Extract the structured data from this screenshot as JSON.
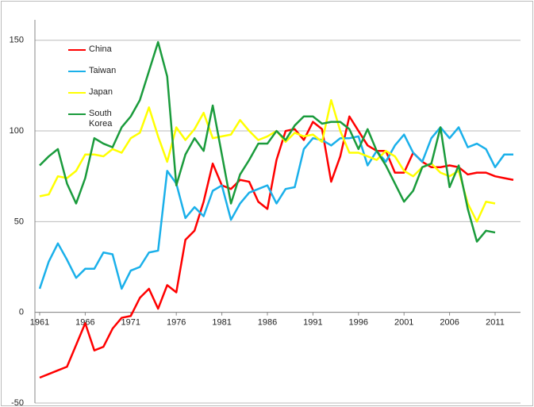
{
  "chart_data": {
    "type": "line",
    "x": [
      1961,
      1962,
      1963,
      1964,
      1965,
      1966,
      1967,
      1968,
      1969,
      1970,
      1971,
      1972,
      1973,
      1974,
      1975,
      1976,
      1977,
      1978,
      1979,
      1980,
      1981,
      1982,
      1983,
      1984,
      1985,
      1986,
      1987,
      1988,
      1989,
      1990,
      1991,
      1992,
      1993,
      1994,
      1995,
      1996,
      1997,
      1998,
      1999,
      2000,
      2001,
      2002,
      2003,
      2004,
      2005,
      2006,
      2007,
      2008,
      2009,
      2010,
      2011,
      2012,
      2013
    ],
    "series": [
      {
        "name": "China",
        "color": "#ff0000",
        "values": [
          -36,
          -34,
          -32,
          -30,
          -18,
          -6,
          -21,
          -19,
          -9,
          -3,
          -2,
          8,
          13,
          2,
          15,
          11,
          40,
          45,
          61,
          82,
          70,
          68,
          73,
          72,
          61,
          57,
          84,
          100,
          101,
          95,
          105,
          101,
          72,
          86,
          108,
          100,
          92,
          89,
          89,
          77,
          77,
          88,
          83,
          80,
          80,
          81,
          80,
          76,
          77,
          77,
          75,
          74,
          73
        ]
      },
      {
        "name": "Taiwan",
        "color": "#1ab0ea",
        "values": [
          13,
          28,
          38,
          29,
          19,
          24,
          24,
          33,
          32,
          13,
          23,
          25,
          33,
          34,
          78,
          71,
          52,
          58,
          53,
          67,
          70,
          51,
          60,
          66,
          68,
          70,
          60,
          68,
          69,
          90,
          96,
          95,
          92,
          96,
          96,
          97,
          81,
          89,
          83,
          92,
          98,
          88,
          83,
          96,
          102,
          96,
          102,
          91,
          93,
          90,
          80,
          87,
          87
        ]
      },
      {
        "name": "Japan",
        "color": "#ffff00",
        "values": [
          64,
          65,
          75,
          74,
          78,
          87,
          87,
          86,
          90,
          88,
          96,
          99,
          113,
          97,
          83,
          102,
          95,
          101,
          110,
          96,
          97,
          98,
          106,
          100,
          95,
          97,
          100,
          94,
          99,
          97,
          98,
          94,
          117,
          100,
          88,
          88,
          86,
          84,
          89,
          86,
          78,
          75,
          80,
          82,
          77,
          75,
          78,
          60,
          50,
          61,
          60,
          null,
          null
        ]
      },
      {
        "name": "South Korea",
        "color": "#1a9b3c",
        "values": [
          81,
          86,
          90,
          71,
          60,
          74,
          96,
          93,
          91,
          102,
          108,
          117,
          133,
          149,
          130,
          70,
          87,
          96,
          89,
          114,
          87,
          60,
          76,
          84,
          93,
          93,
          100,
          95,
          103,
          108,
          108,
          104,
          105,
          105,
          101,
          90,
          101,
          89,
          81,
          71,
          61,
          67,
          80,
          82,
          102,
          69,
          81,
          57,
          39,
          45,
          44,
          null,
          null
        ]
      }
    ],
    "xlim": [
      1961,
      2014
    ],
    "xticks": [
      1961,
      1966,
      1971,
      1976,
      1981,
      1986,
      1991,
      1996,
      2001,
      2006,
      2011
    ],
    "ylim": [
      -50,
      170
    ],
    "yticks": [
      -50,
      0,
      50,
      100,
      150
    ],
    "grid": true
  }
}
